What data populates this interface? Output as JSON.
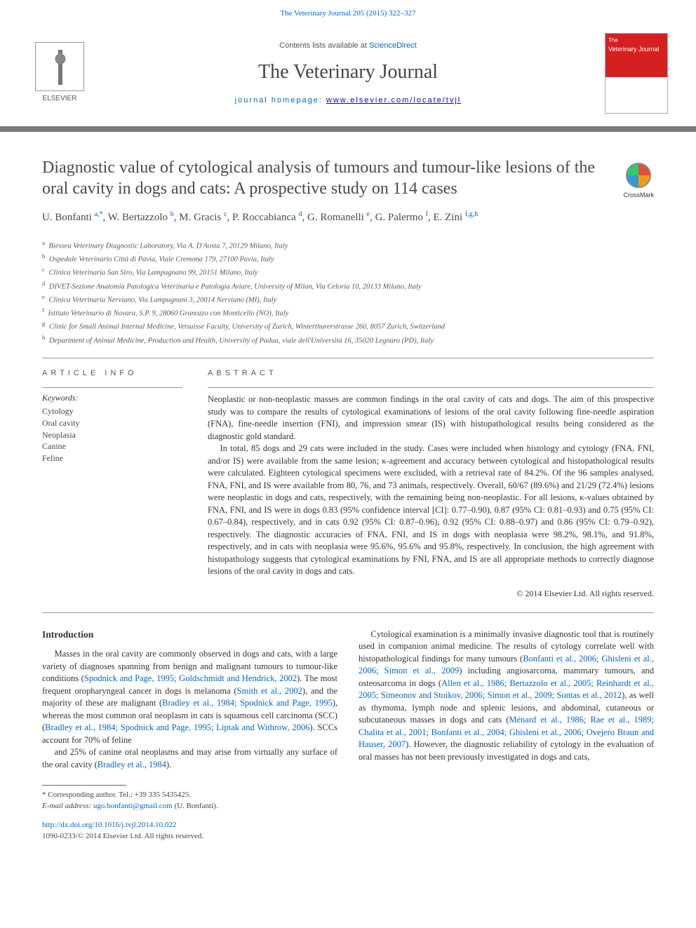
{
  "header_citation": "The Veterinary Journal 205 (2015) 322–327",
  "masthead": {
    "publisher_label": "ELSEVIER",
    "contents_prefix": "Contents lists available at ",
    "contents_link": "ScienceDirect",
    "journal_name": "The Veterinary Journal",
    "homepage_prefix": "journal homepage: ",
    "homepage_url": "www.elsevier.com/locate/tvjl",
    "cover_text_top": "The",
    "cover_text_main": "Veterinary Journal"
  },
  "crossmark_label": "CrossMark",
  "title": "Diagnostic value of cytological analysis of tumours and tumour-like lesions of the oral cavity in dogs and cats: A prospective study on 114 cases",
  "authors_html": "U. Bonfanti <sup>a,*</sup>, W. Bertazzolo <sup>b</sup>, M. Gracis <sup>c</sup>, P. Roccabianca <sup>d</sup>, G. Romanelli <sup>e</sup>, G. Palermo <sup>f</sup>, E. Zini <sup>f,g,h</sup>",
  "affiliations": [
    {
      "sup": "a",
      "text": "Biessea Veterinary Diagnostic Laboratory, Via A. D'Aosta 7, 20129 Milano, Italy"
    },
    {
      "sup": "b",
      "text": "Ospedale Veterinario Città di Pavia, Viale Cremona 179, 27100 Pavia, Italy"
    },
    {
      "sup": "c",
      "text": "Clinica Veterinaria San Siro, Via Lampugnano 99, 20151 Milano, Italy"
    },
    {
      "sup": "d",
      "text": "DIVET-Sezione Anatomia Patologica Veterinaria e Patologia Aviare, University of Milan, Via Celoria 10, 20133 Milano, Italy"
    },
    {
      "sup": "e",
      "text": "Clinica Veterinaria Nerviano, Via Lampugnani 3, 20014 Nerviano (MI), Italy"
    },
    {
      "sup": "f",
      "text": "Istituto Veterinario di Novara, S.P. 9, 28060 Granozzo con Monticello (NO), Italy"
    },
    {
      "sup": "g",
      "text": "Clinic for Small Animal Internal Medicine, Vetsuisse Faculty, University of Zurich, Winterthurerstrasse 260, 8057 Zurich, Switzerland"
    },
    {
      "sup": "h",
      "text": "Department of Animal Medicine, Production and Health, University of Padua, viale dell'Università 16, 35020 Legnaro (PD), Italy"
    }
  ],
  "article_info_label": "ARTICLE INFO",
  "abstract_label": "ABSTRACT",
  "keywords_label": "Keywords:",
  "keywords": [
    "Cytology",
    "Oral cavity",
    "Neoplasia",
    "Canine",
    "Feline"
  ],
  "abstract": {
    "p1": "Neoplastic or non-neoplastic masses are common findings in the oral cavity of cats and dogs. The aim of this prospective study was to compare the results of cytological examinations of lesions of the oral cavity following fine-needle aspiration (FNA), fine-needle insertion (FNI), and impression smear (IS) with histopathological results being considered as the diagnostic gold standard.",
    "p2": "In total, 85 dogs and 29 cats were included in the study. Cases were included when histology and cytology (FNA, FNI, and/or IS) were available from the same lesion; κ-agreement and accuracy between cytological and histopathological results were calculated. Eighteen cytological specimens were excluded, with a retrieval rate of 84.2%. Of the 96 samples analysed, FNA, FNI, and IS were available from 80, 76, and 73 animals, respectively. Overall, 60/67 (89.6%) and 21/29 (72.4%) lesions were neoplastic in dogs and cats, respectively, with the remaining being non-neoplastic. For all lesions, κ-values obtained by FNA, FNI, and IS were in dogs 0.83 (95% confidence interval [CI]: 0.77–0.90), 0.87 (95% CI: 0.81–0.93) and 0.75 (95% CI: 0.67–0.84), respectively, and in cats 0.92 (95% CI: 0.87–0.96), 0.92 (95% CI: 0.88–0.97) and 0.86 (95% CI: 0.79–0.92), respectively. The diagnostic accuracies of FNA, FNI, and IS in dogs with neoplasia were 98.2%, 98.1%, and 91.8%, respectively, and in cats with neoplasia were 95.6%, 95.6% and 95.8%, respectively. In conclusion, the high agreement with histopathology suggests that cytological examinations by FNI, FNA, and IS are all appropriate methods to correctly diagnose lesions of the oral cavity in dogs and cats.",
    "copyright": "© 2014 Elsevier Ltd. All rights reserved."
  },
  "intro_heading": "Introduction",
  "intro_paragraphs": [
    "Masses in the oral cavity are commonly observed in dogs and cats, with a large variety of diagnoses spanning from benign and malignant tumours to tumour-like conditions (<span class='ref'>Spodnick and Page, 1995; Goldschmidt and Hendrick, 2002</span>). The most frequent oropharyngeal cancer in dogs is melanoma (<span class='ref'>Smith et al., 2002</span>), and the majority of these are malignant (<span class='ref'>Bradley et al., 1984; Spodnick and Page, 1995</span>), whereas the most common oral neoplasm in cats is squamous cell carcinoma (SCC) (<span class='ref'>Bradley et al., 1984; Spodnick and Page, 1995; Liptak and Withrow, 2006</span>). SCCs account for 70% of feline",
    "and 25% of canine oral neoplasms and may arise from virtually any surface of the oral cavity (<span class='ref'>Bradley et al., 1984</span>).",
    "Cytological examination is a minimally invasive diagnostic tool that is routinely used in companion animal medicine. The results of cytology correlate well with histopathological findings for many tumours (<span class='ref'>Bonfanti et al., 2006; Ghisleni et al., 2006; Simon et al., 2009</span>) including angiosarcoma, mammary tumours, and osteosarcoma in dogs (<span class='ref'>Allen et al., 1986; Bertazzolo et al., 2005; Reinhardt et al., 2005; Simeonov and Stoikov, 2006; Simon et al., 2009; Sontas et al., 2012</span>), as well as thymoma, lymph node and splenic lesions, and abdominal, cutaneous or subcutaneous masses in dogs and cats (<span class='ref'>Ménard et al., 1986; Rae et al., 1989; Chalita et al., 2001; Bonfanti et al., 2004; Ghisleni et al., 2006; Ovejero Braun and Hauser, 2007</span>). However, the diagnostic reliability of cytology in the evaluation of oral masses has not been previously investigated in dogs and cats,"
  ],
  "footer": {
    "corresponding": "* Corresponding author. Tel.: +39 335 5435425.",
    "email_label": "E-mail address: ",
    "email": "ugo.bonfanti@gmail.com",
    "email_suffix": " (U. Bonfanti).",
    "doi": "http://dx.doi.org/10.1016/j.tvjl.2014.10.022",
    "issn": "1090-0233/© 2014 Elsevier Ltd. All rights reserved."
  },
  "colors": {
    "link": "#0066cc",
    "rule": "#7a7a7a",
    "text": "#333333",
    "cover_red": "#d62020"
  }
}
